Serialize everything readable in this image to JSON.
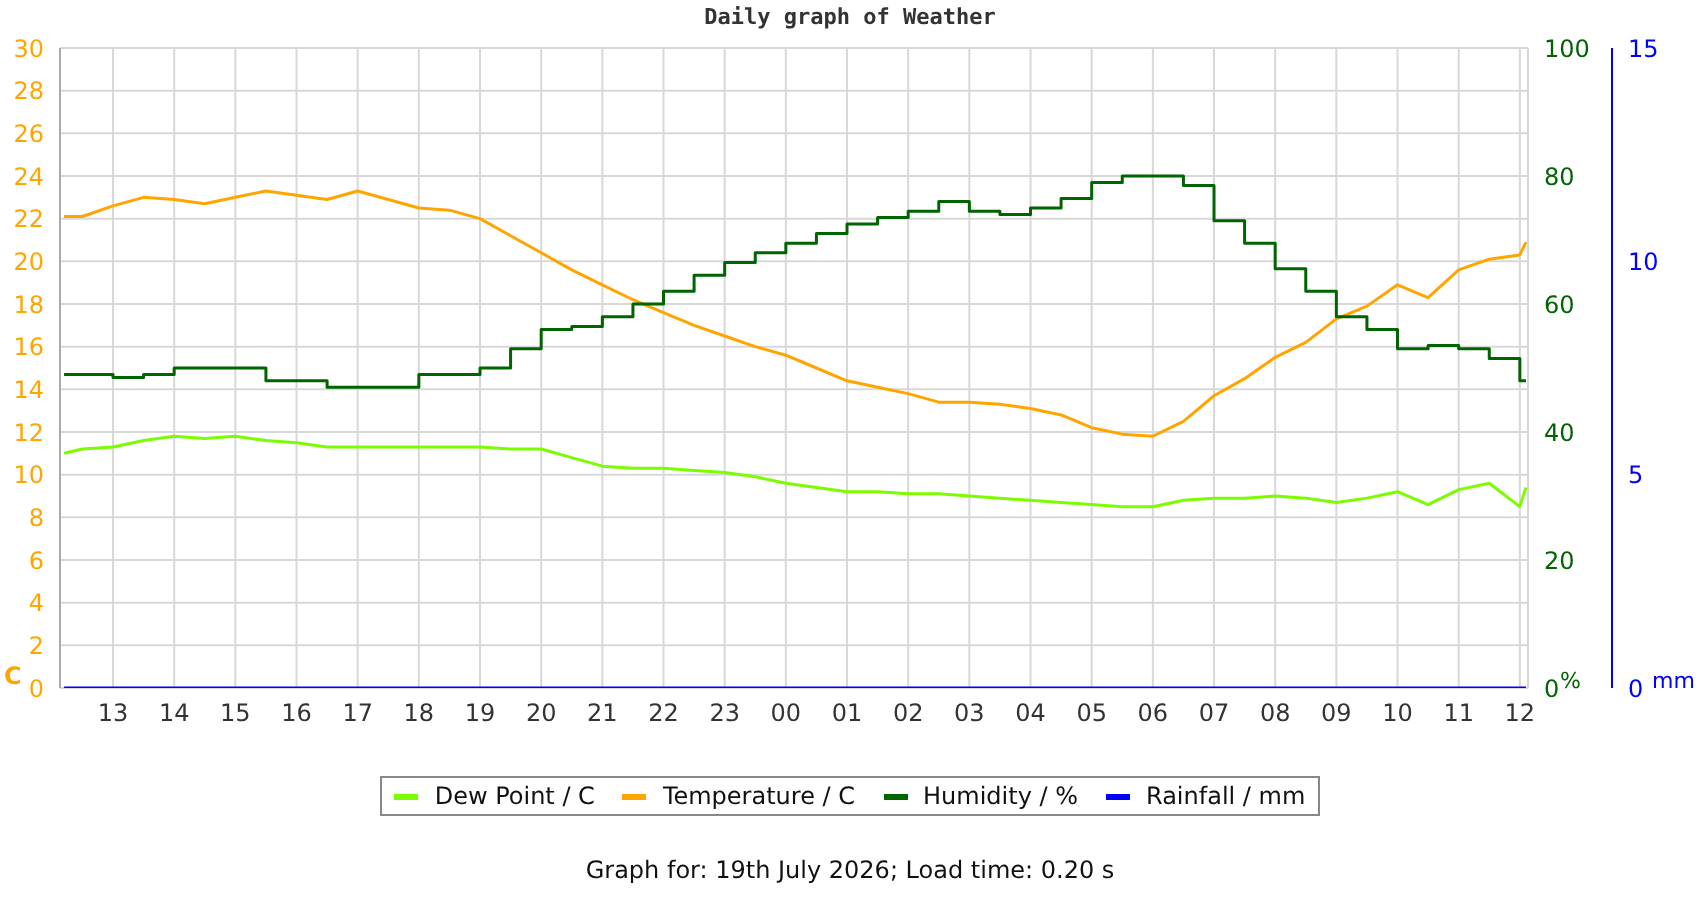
{
  "chart_data": {
    "type": "line",
    "title": "Daily graph of Weather",
    "ylabel": "C",
    "y2label": "%",
    "y3label": "mm",
    "annotations": [
      "Graph for: 19th July 2026; Load time: 0.20 s"
    ],
    "x": [
      "2026-07-18T12:12",
      "2026-07-18T12:30",
      "2026-07-18T13:00",
      "2026-07-18T13:30",
      "2026-07-18T14:00",
      "2026-07-18T14:30",
      "2026-07-18T15:00",
      "2026-07-18T15:30",
      "2026-07-18T16:00",
      "2026-07-18T16:30",
      "2026-07-18T17:00",
      "2026-07-18T17:30",
      "2026-07-18T18:00",
      "2026-07-18T18:30",
      "2026-07-18T19:00",
      "2026-07-18T19:30",
      "2026-07-18T20:00",
      "2026-07-18T20:30",
      "2026-07-18T21:00",
      "2026-07-18T21:30",
      "2026-07-18T22:00",
      "2026-07-18T22:30",
      "2026-07-18T23:00",
      "2026-07-18T23:30",
      "2026-07-19T00:00",
      "2026-07-19T00:30",
      "2026-07-19T01:00",
      "2026-07-19T01:30",
      "2026-07-19T02:00",
      "2026-07-19T02:30",
      "2026-07-19T03:00",
      "2026-07-19T03:30",
      "2026-07-19T04:00",
      "2026-07-19T04:30",
      "2026-07-19T05:00",
      "2026-07-19T05:30",
      "2026-07-19T06:00",
      "2026-07-19T06:30",
      "2026-07-19T07:00",
      "2026-07-19T07:30",
      "2026-07-19T08:00",
      "2026-07-19T08:30",
      "2026-07-19T09:00",
      "2026-07-19T09:30",
      "2026-07-19T10:00",
      "2026-07-19T10:30",
      "2026-07-19T11:00",
      "2026-07-19T11:30",
      "2026-07-19T12:00",
      "2026-07-19T12:06"
    ],
    "xlim": [
      "2026-07-18T12:08",
      "2026-07-19T12:08"
    ],
    "xticks": [
      {
        "value": "2026-07-18T13:00",
        "label": "13"
      },
      {
        "value": "2026-07-18T14:00",
        "label": "14"
      },
      {
        "value": "2026-07-18T15:00",
        "label": "15"
      },
      {
        "value": "2026-07-18T16:00",
        "label": "16"
      },
      {
        "value": "2026-07-18T17:00",
        "label": "17"
      },
      {
        "value": "2026-07-18T18:00",
        "label": "18"
      },
      {
        "value": "2026-07-18T19:00",
        "label": "19"
      },
      {
        "value": "2026-07-18T20:00",
        "label": "20"
      },
      {
        "value": "2026-07-18T21:00",
        "label": "21"
      },
      {
        "value": "2026-07-18T22:00",
        "label": "22"
      },
      {
        "value": "2026-07-18T23:00",
        "label": "23"
      },
      {
        "value": "2026-07-19T00:00",
        "label": "00"
      },
      {
        "value": "2026-07-19T01:00",
        "label": "01"
      },
      {
        "value": "2026-07-19T02:00",
        "label": "02"
      },
      {
        "value": "2026-07-19T03:00",
        "label": "03"
      },
      {
        "value": "2026-07-19T04:00",
        "label": "04"
      },
      {
        "value": "2026-07-19T05:00",
        "label": "05"
      },
      {
        "value": "2026-07-19T06:00",
        "label": "06"
      },
      {
        "value": "2026-07-19T07:00",
        "label": "07"
      },
      {
        "value": "2026-07-19T08:00",
        "label": "08"
      },
      {
        "value": "2026-07-19T09:00",
        "label": "09"
      },
      {
        "value": "2026-07-19T10:00",
        "label": "10"
      },
      {
        "value": "2026-07-19T11:00",
        "label": "11"
      },
      {
        "value": "2026-07-19T12:00",
        "label": "12"
      }
    ],
    "ylim": [
      0,
      30
    ],
    "yticks": [
      0,
      2,
      4,
      6,
      8,
      10,
      12,
      14,
      16,
      18,
      20,
      22,
      24,
      26,
      28,
      30
    ],
    "y2lim": [
      0,
      100
    ],
    "y2ticks": [
      0,
      20,
      40,
      60,
      80,
      100
    ],
    "y3lim": [
      0,
      15
    ],
    "y3ticks": [
      0,
      5,
      10,
      15
    ],
    "grid": true,
    "legend": "bottom",
    "line_style": "solid",
    "marker": "none",
    "series": [
      {
        "name": "Dew Point / C",
        "color": "#7cfc00",
        "type": "line",
        "values": [
          11.0,
          11.2,
          11.3,
          11.6,
          11.8,
          11.7,
          11.8,
          11.6,
          11.5,
          11.3,
          11.3,
          11.3,
          11.3,
          11.3,
          11.3,
          11.2,
          11.2,
          10.8,
          10.4,
          10.3,
          10.3,
          10.2,
          10.1,
          9.9,
          9.6,
          9.4,
          9.2,
          9.2,
          9.1,
          9.1,
          9.0,
          8.9,
          8.8,
          8.7,
          8.6,
          8.5,
          8.5,
          8.8,
          8.9,
          8.9,
          9.0,
          8.9,
          8.7,
          8.9,
          9.2,
          8.6,
          9.3,
          9.6,
          8.5,
          9.4
        ]
      },
      {
        "name": "Temperature / C",
        "color": "#ffa500",
        "type": "line",
        "values": [
          22.1,
          22.1,
          22.6,
          23.0,
          22.9,
          22.7,
          23.0,
          23.3,
          23.1,
          22.9,
          23.3,
          22.9,
          22.5,
          22.4,
          22.0,
          21.2,
          20.4,
          19.6,
          18.9,
          18.2,
          17.6,
          17.0,
          16.5,
          16.0,
          15.6,
          15.0,
          14.4,
          14.1,
          13.8,
          13.4,
          13.4,
          13.3,
          13.1,
          12.8,
          12.2,
          11.9,
          11.8,
          12.5,
          13.7,
          14.5,
          15.5,
          16.2,
          17.3,
          17.9,
          18.9,
          18.3,
          19.6,
          20.1,
          20.3,
          20.9
        ]
      },
      {
        "name": "Humidity / %",
        "color": "#006400",
        "type": "step",
        "axis": "y2",
        "values": [
          49,
          49,
          48.5,
          49,
          50,
          50,
          50,
          48,
          48,
          47,
          47,
          47,
          49,
          49,
          50,
          53,
          56,
          56.5,
          58,
          60,
          62,
          64.5,
          66.5,
          68,
          69.5,
          71,
          72.5,
          73.5,
          74.5,
          76,
          74.5,
          74,
          75,
          76.5,
          79,
          80,
          80,
          78.5,
          73,
          69.5,
          65.5,
          62,
          58,
          56,
          53,
          53.5,
          53,
          51.5,
          48,
          48
        ]
      },
      {
        "name": "Rainfall / mm",
        "color": "#0000ff",
        "type": "line",
        "axis": "y3",
        "values": [
          0,
          0,
          0,
          0,
          0,
          0,
          0,
          0,
          0,
          0,
          0,
          0,
          0,
          0,
          0,
          0,
          0,
          0,
          0,
          0,
          0,
          0,
          0,
          0,
          0,
          0,
          0,
          0,
          0,
          0,
          0,
          0,
          0,
          0,
          0,
          0,
          0,
          0,
          0,
          0,
          0,
          0,
          0,
          0,
          0,
          0,
          0,
          0,
          0,
          0
        ]
      }
    ]
  }
}
